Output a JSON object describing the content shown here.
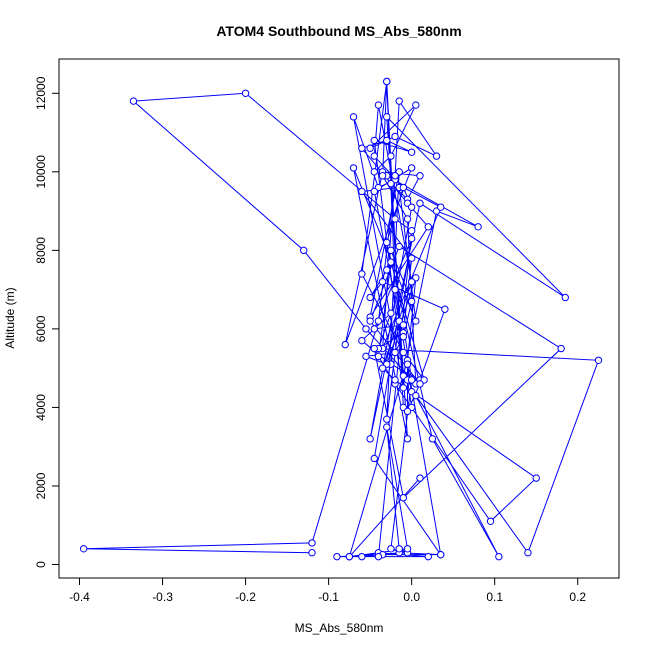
{
  "chart_data": {
    "type": "line",
    "title": "ATOM4 Southbound MS_Abs_580nm",
    "xlabel": "MS_Abs_580nm",
    "ylabel": "Altitude (m)",
    "xlim": [
      -0.4,
      0.225
    ],
    "ylim": [
      0,
      12300
    ],
    "xticks": [
      -0.4,
      -0.3,
      -0.2,
      -0.1,
      0.0,
      0.1,
      0.2
    ],
    "xtick_labels": [
      "-0.4",
      "-0.3",
      "-0.2",
      "-0.1",
      "0.0",
      "0.1",
      "0.2"
    ],
    "yticks": [
      0,
      2000,
      4000,
      6000,
      8000,
      10000,
      12000
    ],
    "ytick_labels": [
      "0",
      "2000",
      "4000",
      "6000",
      "8000",
      "10000",
      "12000"
    ],
    "grid": false,
    "legend": "none",
    "series": [
      {
        "color": "#0000ff",
        "marker": "open-circle",
        "x": [
          -0.12,
          -0.395,
          -0.12,
          -0.04,
          -0.02,
          -0.04,
          -0.07,
          -0.01,
          -0.025,
          -0.005,
          0.01,
          -0.035,
          -0.08,
          0.0,
          -0.045,
          -0.015,
          -0.03,
          -0.015,
          -0.05,
          0.02,
          -0.005,
          -0.06,
          -0.03,
          0.0,
          -0.045,
          -0.01,
          0.03,
          0.08,
          -0.03,
          -0.045,
          -0.025,
          0.005,
          -0.05,
          -0.02,
          0.03,
          -0.015,
          -0.02,
          -0.035,
          0.035,
          -0.01,
          0.0,
          -0.05,
          0.01,
          0.185,
          -0.03,
          -0.005,
          -0.07,
          0.005,
          -0.015,
          -0.06,
          0.0,
          -0.01,
          -0.04,
          -0.025,
          -0.06,
          -0.025,
          0.01,
          0.04,
          -0.035,
          -0.05,
          -0.03,
          -0.025,
          0.0,
          -0.01,
          -0.02,
          -0.055,
          -0.03,
          0.005,
          -0.005,
          -0.075,
          0.02,
          -0.04,
          -0.06,
          -0.015,
          0.035,
          -0.035,
          -0.09,
          -0.04,
          0.0,
          -0.02,
          -0.2,
          -0.335,
          -0.13,
          -0.055,
          0.005,
          -0.005,
          -0.035,
          -0.03,
          -0.02,
          0.0,
          0.15,
          0.095,
          -0.02,
          -0.04,
          -0.025,
          0.015,
          -0.01,
          -0.06,
          -0.03,
          -0.01,
          0.0,
          -0.005,
          0.105,
          0.025,
          -0.03,
          -0.01,
          -0.045,
          -0.04,
          0.0,
          -0.035,
          -0.02,
          0.005,
          0.14,
          0.225,
          -0.045,
          -0.01,
          0.18,
          -0.015,
          -0.05,
          0.01,
          -0.005,
          -0.005,
          0.035,
          -0.045,
          0.0,
          -0.045,
          -0.01,
          0.0,
          -0.025,
          -0.005,
          -0.015,
          -0.03,
          -0.005,
          -0.075,
          0.01
        ],
        "y": [
          300,
          400,
          550,
          6200,
          9800,
          9600,
          11400,
          4500,
          9700,
          9300,
          9900,
          10000,
          5600,
          10100,
          9500,
          6200,
          3700,
          10000,
          6300,
          8600,
          9200,
          10600,
          10800,
          10500,
          10800,
          4800,
          9000,
          8600,
          9900,
          10000,
          10400,
          11700,
          10600,
          10900,
          10400,
          11800,
          9900,
          5500,
          9100,
          9600,
          9100,
          3200,
          9200,
          6800,
          11400,
          3200,
          10100,
          6200,
          9600,
          9500,
          7800,
          5900,
          5500,
          6400,
          5700,
          5100,
          4700,
          6500,
          7200,
          6800,
          7500,
          8000,
          6700,
          5800,
          5400,
          5300,
          5100,
          7300,
          5200,
          200,
          200,
          300,
          200,
          300,
          250,
          250,
          200,
          200,
          8500,
          8800,
          12000,
          11800,
          8000,
          6000,
          4600,
          8800,
          9900,
          12300,
          7000,
          4400,
          2200,
          1100,
          4600,
          5300,
          7700,
          4700,
          5400,
          7400,
          12300,
          4000,
          4000,
          4700,
          200,
          3200,
          8200,
          9600,
          10400,
          11700,
          7200,
          5000,
          4700,
          4300,
          300,
          5200,
          5500,
          1700,
          5500,
          8100,
          6200,
          4600,
          3900,
          5100,
          250,
          2700,
          8300,
          6000,
          6100,
          4700,
          400,
          300,
          400,
          3500,
          400,
          200,
          2200
        ]
      }
    ]
  }
}
